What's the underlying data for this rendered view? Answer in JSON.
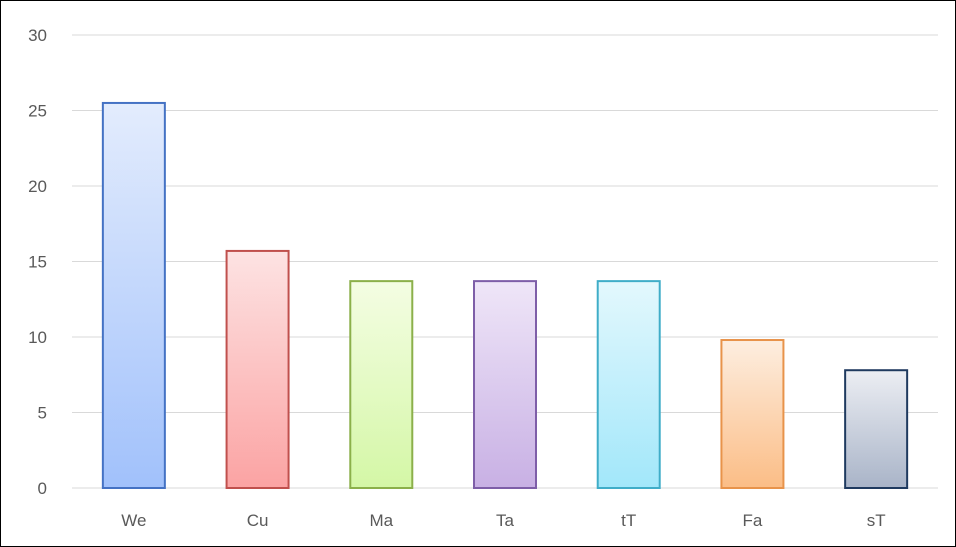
{
  "chart_data": {
    "type": "bar",
    "categories": [
      "We",
      "Cu",
      "Ma",
      "Ta",
      "tT",
      "Fa",
      "sT"
    ],
    "values": [
      25.5,
      15.7,
      13.7,
      13.7,
      13.7,
      9.8,
      7.8
    ],
    "title": "",
    "xlabel": "",
    "ylabel": "",
    "ylim": [
      0,
      30
    ],
    "yticks": [
      "0",
      "5",
      "10",
      "15",
      "20",
      "25",
      "30"
    ],
    "grid": true,
    "legend": "none",
    "colors": [
      {
        "top": "#e3ecfd",
        "bottom": "#a1c1fb",
        "stroke": "#4472c4"
      },
      {
        "top": "#fde3e3",
        "bottom": "#fba3a3",
        "stroke": "#c0504d"
      },
      {
        "top": "#f4fde3",
        "bottom": "#d4f7a6",
        "stroke": "#8bb04a"
      },
      {
        "top": "#efe6f8",
        "bottom": "#c8b0e4",
        "stroke": "#7e5ea8"
      },
      {
        "top": "#e3f8fd",
        "bottom": "#a2e7fa",
        "stroke": "#3fadc8"
      },
      {
        "top": "#fdeee0",
        "bottom": "#fbbd86",
        "stroke": "#e8934a"
      },
      {
        "top": "#eceef3",
        "bottom": "#a9b4c8",
        "stroke": "#1f3a5f"
      }
    ]
  }
}
